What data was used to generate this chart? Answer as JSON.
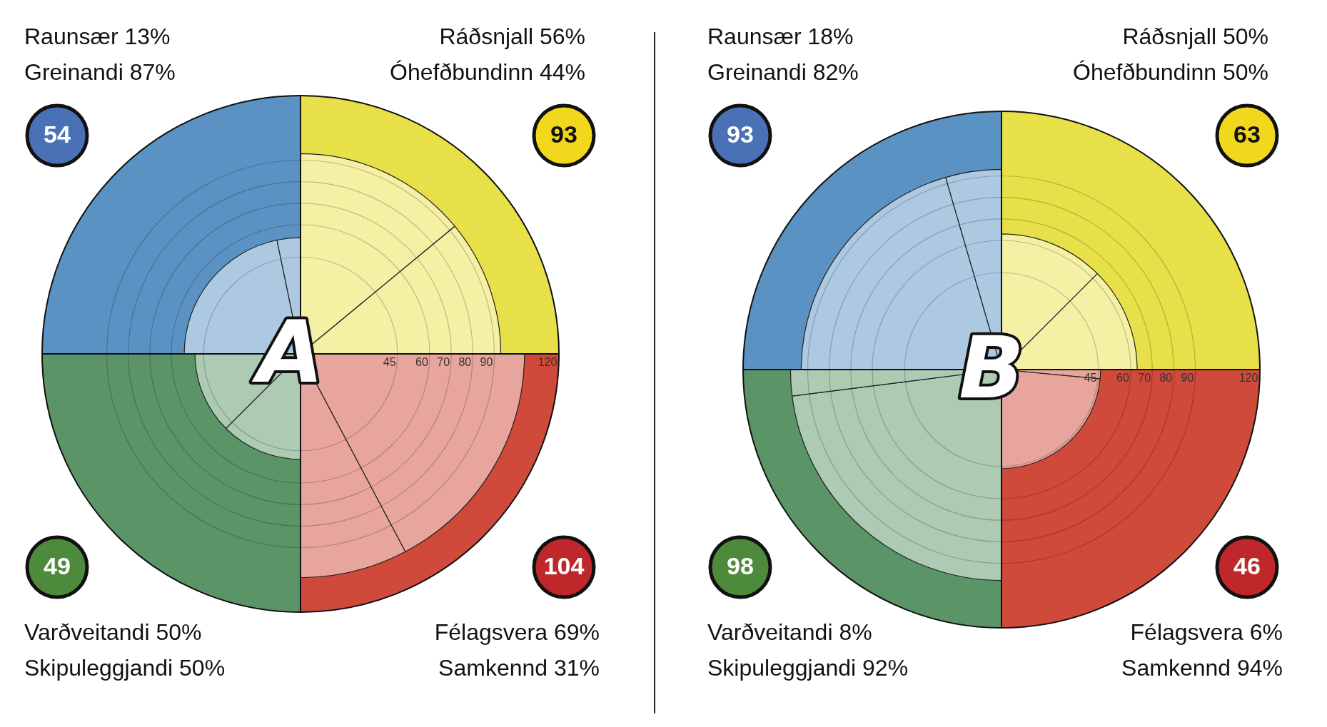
{
  "chart_data": [
    {
      "type": "other",
      "title": "A",
      "categories": [
        "Félagsvera",
        "Samkennd",
        "Skipuleggjandi",
        "Varðveitandi",
        "Greinandi",
        "Raunsær",
        "Ráðsnjall",
        "Óhefðbundinn"
      ],
      "series": [
        {
          "values": [
            104,
            null,
            null,
            49,
            54,
            null,
            null,
            93
          ],
          "value_labels": [
            "104",
            null,
            null,
            "49",
            "54",
            null,
            null,
            "93"
          ],
          "colors": [
            "#c0272a",
            null,
            null,
            "#4d8a3b",
            "#4a70b6",
            null,
            null,
            "#f2d81c"
          ]
        },
        {
          "values": [
            69,
            31,
            50,
            50,
            87,
            13,
            56,
            44
          ],
          "value_labels": [
            "69%",
            "31%",
            "50%",
            "50%",
            "87%",
            "13%",
            "56%",
            "44%"
          ],
          "colors": [
            "#cf4a3b",
            "#cf4a3b",
            "#5b9467",
            "#5b9467",
            "#5a92c4",
            "#5a92c4",
            "#e8e048",
            "#e8e048"
          ]
        }
      ],
      "annotations": [
        "45",
        "60",
        "70",
        "80",
        "90",
        "120"
      ]
    },
    {
      "type": "other",
      "title": "B",
      "categories": [
        "Félagsvera",
        "Samkennd",
        "Skipuleggjandi",
        "Varðveitandi",
        "Greinandi",
        "Raunsær",
        "Ráðsnjall",
        "Óhefðbundinn"
      ],
      "series": [
        {
          "values": [
            46,
            null,
            null,
            98,
            93,
            null,
            null,
            63
          ],
          "value_labels": [
            "46",
            null,
            null,
            "98",
            "93",
            null,
            null,
            "63"
          ],
          "colors": [
            "#c0272a",
            null,
            null,
            "#4d8a3b",
            "#4a70b6",
            null,
            null,
            "#f2d81c"
          ]
        },
        {
          "values": [
            6,
            94,
            92,
            8,
            82,
            18,
            50,
            50
          ],
          "value_labels": [
            "6%",
            "94%",
            "92%",
            "8%",
            "82%",
            "18%",
            "50%",
            "50%"
          ],
          "colors": [
            "#cf4a3b",
            "#cf4a3b",
            "#5b9467",
            "#5b9467",
            "#5a92c4",
            "#5a92c4",
            "#e8e048",
            "#e8e048"
          ]
        }
      ],
      "annotations": [
        "45",
        "60",
        "70",
        "80",
        "90",
        "120"
      ]
    }
  ]
}
